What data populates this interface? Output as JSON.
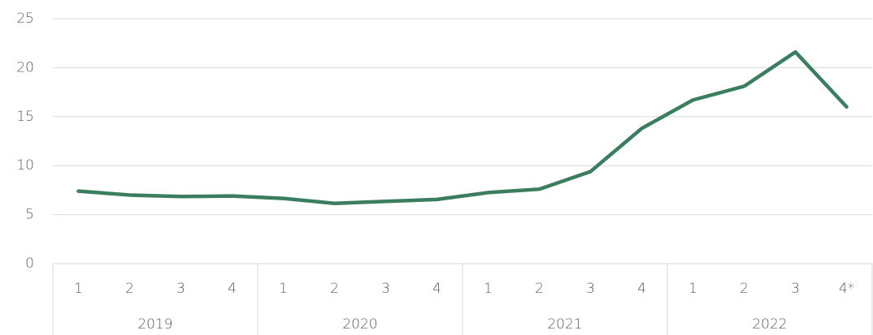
{
  "chart_data": {
    "type": "line",
    "categories": [
      "1",
      "2",
      "3",
      "4",
      "1",
      "2",
      "3",
      "4",
      "1",
      "2",
      "3",
      "4",
      "1",
      "2",
      "3",
      "4*"
    ],
    "groups": [
      "2019",
      "2020",
      "2021",
      "2022"
    ],
    "values": [
      7.4,
      7.0,
      6.85,
      6.9,
      6.65,
      6.15,
      6.35,
      6.55,
      7.25,
      7.6,
      9.4,
      13.8,
      16.7,
      18.1,
      21.6,
      16.0
    ],
    "color": "#3a7d5f",
    "ylim": [
      0,
      25
    ],
    "yticks": [
      0,
      5,
      10,
      15,
      20,
      25
    ],
    "grid": true
  }
}
